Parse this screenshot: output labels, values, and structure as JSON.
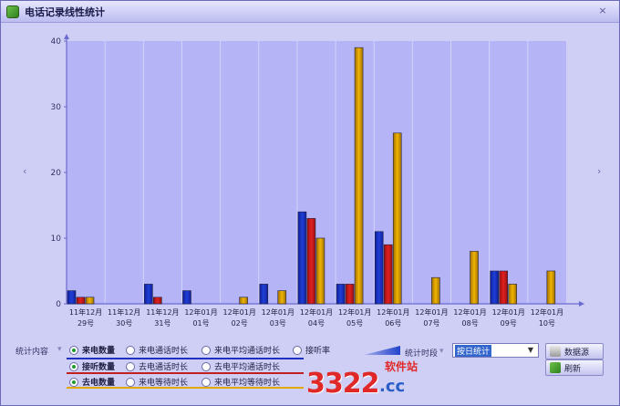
{
  "window": {
    "title": "电话记录线性统计",
    "close_glyph": "×"
  },
  "nav": {
    "left_glyph": "‹",
    "right_glyph": "›"
  },
  "chart_data": {
    "type": "bar",
    "ylim": [
      0,
      40
    ],
    "y_ticks": [
      0,
      10,
      20,
      30,
      40
    ],
    "categories": [
      [
        "11年12月",
        "29号"
      ],
      [
        "11年12月",
        "30号"
      ],
      [
        "11年12月",
        "31号"
      ],
      [
        "12年01月",
        "01号"
      ],
      [
        "12年01月",
        "02号"
      ],
      [
        "12年01月",
        "03号"
      ],
      [
        "12年01月",
        "04号"
      ],
      [
        "12年01月",
        "05号"
      ],
      [
        "12年01月",
        "06号"
      ],
      [
        "12年01月",
        "07号"
      ],
      [
        "12年01月",
        "08号"
      ],
      [
        "12年01月",
        "09号"
      ],
      [
        "12年01月",
        "10号"
      ]
    ],
    "series": [
      {
        "color": "#1f3fd8",
        "values": [
          2,
          0,
          3,
          2,
          0,
          3,
          14,
          3,
          11,
          0,
          0,
          5,
          0
        ]
      },
      {
        "color": "#e02020",
        "values": [
          1,
          0,
          1,
          0,
          0,
          0,
          13,
          3,
          9,
          0,
          0,
          5,
          0
        ]
      },
      {
        "color": "#f0b400",
        "values": [
          1,
          0,
          0,
          0,
          1,
          2,
          10,
          39,
          26,
          4,
          8,
          3,
          5
        ]
      }
    ]
  },
  "controls": {
    "content_label": "统计内容",
    "period_label": "统计时段",
    "period_value": "按日统计",
    "row1": {
      "line_color": "#2030c0",
      "items": [
        {
          "label": "来电数量",
          "checked": true
        },
        {
          "label": "来电通话时长",
          "checked": false
        },
        {
          "label": "来电平均通话时长",
          "checked": false
        },
        {
          "label": "接听率",
          "checked": false
        }
      ]
    },
    "row2": {
      "line_color": "#c02020",
      "items": [
        {
          "label": "接听数量",
          "checked": true
        },
        {
          "label": "去电通话时长",
          "checked": false
        },
        {
          "label": "去电平均通话时长",
          "checked": false
        }
      ]
    },
    "row3": {
      "line_color": "#e0a800",
      "items": [
        {
          "label": "去电数量",
          "checked": true
        },
        {
          "label": "来电等待时长",
          "checked": false
        },
        {
          "label": "来电平均等待时长",
          "checked": false
        }
      ]
    },
    "data_source_button": "数据源",
    "refresh_button": "刷新"
  },
  "watermark": {
    "logo": "3322",
    "suffix": ".cc",
    "cn": "软件站"
  }
}
